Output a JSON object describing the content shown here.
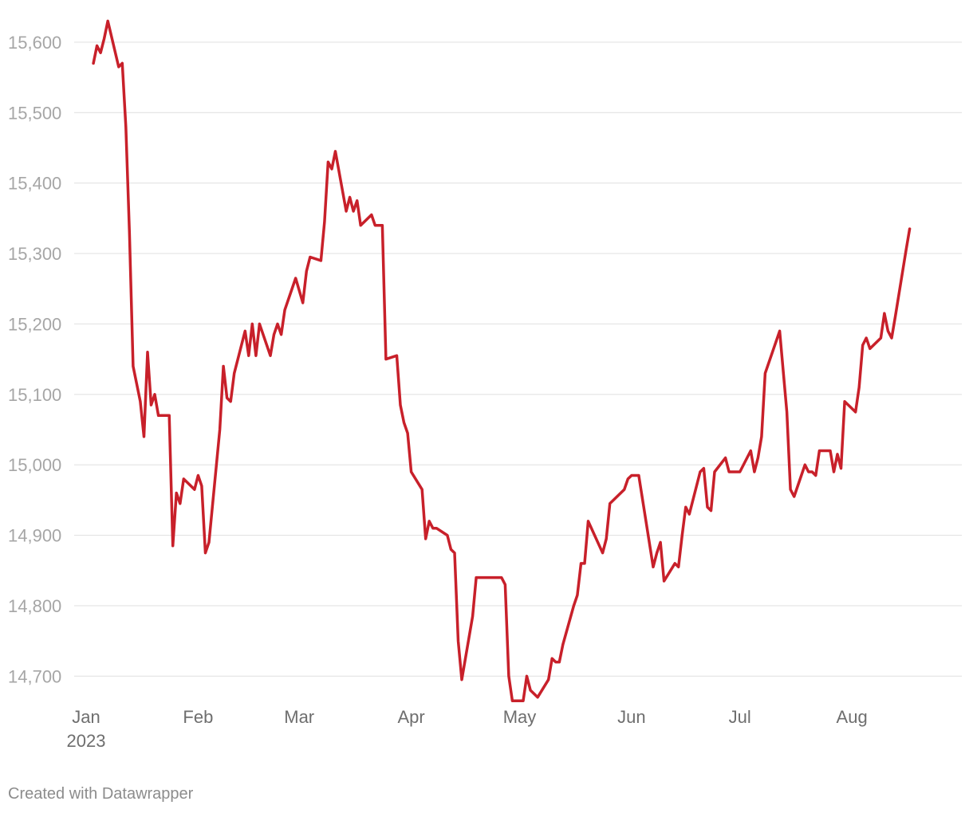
{
  "chart_data": {
    "type": "line",
    "title": "",
    "xlabel": "",
    "ylabel": "",
    "x_tick_labels": [
      "Jan",
      "Feb",
      "Mar",
      "Apr",
      "May",
      "Jun",
      "Jul",
      "Aug"
    ],
    "x_year_label": "2023",
    "y_ticks": [
      14700,
      14800,
      14900,
      15000,
      15100,
      15200,
      15300,
      15400,
      15500,
      15600
    ],
    "y_tick_labels": [
      "14,700",
      "14,800",
      "14,900",
      "15,000",
      "15,100",
      "15,200",
      "15,300",
      "15,400",
      "15,500",
      "15,600"
    ],
    "xlim": [
      "2023-01-01",
      "2023-08-31"
    ],
    "ylim": [
      14680,
      15635
    ],
    "grid": true,
    "legend": "none",
    "series": [
      {
        "color": "#c8202a",
        "points": [
          [
            "2023-01-03",
            15570
          ],
          [
            "2023-01-04",
            15595
          ],
          [
            "2023-01-05",
            15585
          ],
          [
            "2023-01-06",
            15605
          ],
          [
            "2023-01-07",
            15630
          ],
          [
            "2023-01-10",
            15565
          ],
          [
            "2023-01-11",
            15570
          ],
          [
            "2023-01-12",
            15480
          ],
          [
            "2023-01-13",
            15330
          ],
          [
            "2023-01-14",
            15140
          ],
          [
            "2023-01-16",
            15090
          ],
          [
            "2023-01-17",
            15040
          ],
          [
            "2023-01-18",
            15160
          ],
          [
            "2023-01-19",
            15085
          ],
          [
            "2023-01-20",
            15100
          ],
          [
            "2023-01-21",
            15070
          ],
          [
            "2023-01-24",
            15070
          ],
          [
            "2023-01-25",
            14885
          ],
          [
            "2023-01-26",
            14960
          ],
          [
            "2023-01-27",
            14945
          ],
          [
            "2023-01-28",
            14980
          ],
          [
            "2023-01-31",
            14965
          ],
          [
            "2023-02-01",
            14985
          ],
          [
            "2023-02-02",
            14970
          ],
          [
            "2023-02-03",
            14875
          ],
          [
            "2023-02-04",
            14890
          ],
          [
            "2023-02-07",
            15050
          ],
          [
            "2023-02-08",
            15140
          ],
          [
            "2023-02-09",
            15095
          ],
          [
            "2023-02-10",
            15090
          ],
          [
            "2023-02-11",
            15130
          ],
          [
            "2023-02-14",
            15190
          ],
          [
            "2023-02-15",
            15155
          ],
          [
            "2023-02-16",
            15200
          ],
          [
            "2023-02-17",
            15155
          ],
          [
            "2023-02-18",
            15200
          ],
          [
            "2023-02-21",
            15155
          ],
          [
            "2023-02-22",
            15185
          ],
          [
            "2023-02-23",
            15200
          ],
          [
            "2023-02-24",
            15185
          ],
          [
            "2023-02-25",
            15220
          ],
          [
            "2023-02-28",
            15265
          ],
          [
            "2023-03-02",
            15230
          ],
          [
            "2023-03-03",
            15275
          ],
          [
            "2023-03-04",
            15295
          ],
          [
            "2023-03-07",
            15290
          ],
          [
            "2023-03-08",
            15345
          ],
          [
            "2023-03-09",
            15430
          ],
          [
            "2023-03-10",
            15420
          ],
          [
            "2023-03-11",
            15445
          ],
          [
            "2023-03-14",
            15360
          ],
          [
            "2023-03-15",
            15380
          ],
          [
            "2023-03-16",
            15360
          ],
          [
            "2023-03-17",
            15375
          ],
          [
            "2023-03-18",
            15340
          ],
          [
            "2023-03-21",
            15355
          ],
          [
            "2023-03-22",
            15340
          ],
          [
            "2023-03-24",
            15340
          ],
          [
            "2023-03-25",
            15150
          ],
          [
            "2023-03-28",
            15155
          ],
          [
            "2023-03-29",
            15085
          ],
          [
            "2023-03-30",
            15060
          ],
          [
            "2023-03-31",
            15045
          ],
          [
            "2023-04-01",
            14990
          ],
          [
            "2023-04-04",
            14965
          ],
          [
            "2023-04-05",
            14895
          ],
          [
            "2023-04-06",
            14920
          ],
          [
            "2023-04-07",
            14910
          ],
          [
            "2023-04-08",
            14910
          ],
          [
            "2023-04-11",
            14900
          ],
          [
            "2023-04-12",
            14880
          ],
          [
            "2023-04-13",
            14875
          ],
          [
            "2023-04-14",
            14750
          ],
          [
            "2023-04-15",
            14695
          ],
          [
            "2023-04-18",
            14785
          ],
          [
            "2023-04-19",
            14840
          ],
          [
            "2023-04-26",
            14840
          ],
          [
            "2023-04-27",
            14830
          ],
          [
            "2023-04-28",
            14700
          ],
          [
            "2023-04-29",
            14665
          ],
          [
            "2023-05-02",
            14665
          ],
          [
            "2023-05-03",
            14700
          ],
          [
            "2023-05-04",
            14680
          ],
          [
            "2023-05-06",
            14670
          ],
          [
            "2023-05-09",
            14695
          ],
          [
            "2023-05-10",
            14725
          ],
          [
            "2023-05-11",
            14720
          ],
          [
            "2023-05-12",
            14720
          ],
          [
            "2023-05-13",
            14745
          ],
          [
            "2023-05-16",
            14800
          ],
          [
            "2023-05-17",
            14815
          ],
          [
            "2023-05-18",
            14860
          ],
          [
            "2023-05-19",
            14860
          ],
          [
            "2023-05-20",
            14920
          ],
          [
            "2023-05-24",
            14875
          ],
          [
            "2023-05-25",
            14895
          ],
          [
            "2023-05-26",
            14945
          ],
          [
            "2023-05-29",
            14960
          ],
          [
            "2023-05-30",
            14965
          ],
          [
            "2023-05-31",
            14980
          ],
          [
            "2023-06-01",
            14985
          ],
          [
            "2023-06-03",
            14985
          ],
          [
            "2023-06-07",
            14855
          ],
          [
            "2023-06-08",
            14875
          ],
          [
            "2023-06-09",
            14890
          ],
          [
            "2023-06-10",
            14835
          ],
          [
            "2023-06-13",
            14860
          ],
          [
            "2023-06-14",
            14855
          ],
          [
            "2023-06-15",
            14900
          ],
          [
            "2023-06-16",
            14940
          ],
          [
            "2023-06-17",
            14930
          ],
          [
            "2023-06-20",
            14990
          ],
          [
            "2023-06-21",
            14995
          ],
          [
            "2023-06-22",
            14940
          ],
          [
            "2023-06-23",
            14935
          ],
          [
            "2023-06-24",
            14990
          ],
          [
            "2023-06-27",
            15010
          ],
          [
            "2023-06-28",
            14990
          ],
          [
            "2023-07-01",
            14990
          ],
          [
            "2023-07-04",
            15020
          ],
          [
            "2023-07-05",
            14990
          ],
          [
            "2023-07-06",
            15010
          ],
          [
            "2023-07-07",
            15040
          ],
          [
            "2023-07-08",
            15130
          ],
          [
            "2023-07-12",
            15190
          ],
          [
            "2023-07-14",
            15075
          ],
          [
            "2023-07-15",
            14965
          ],
          [
            "2023-07-16",
            14955
          ],
          [
            "2023-07-19",
            15000
          ],
          [
            "2023-07-20",
            14990
          ],
          [
            "2023-07-21",
            14990
          ],
          [
            "2023-07-22",
            14985
          ],
          [
            "2023-07-23",
            15020
          ],
          [
            "2023-07-26",
            15020
          ],
          [
            "2023-07-27",
            14990
          ],
          [
            "2023-07-28",
            15015
          ],
          [
            "2023-07-29",
            14995
          ],
          [
            "2023-07-30",
            15090
          ],
          [
            "2023-08-02",
            15075
          ],
          [
            "2023-08-03",
            15110
          ],
          [
            "2023-08-04",
            15170
          ],
          [
            "2023-08-05",
            15180
          ],
          [
            "2023-08-06",
            15165
          ],
          [
            "2023-08-09",
            15180
          ],
          [
            "2023-08-10",
            15215
          ],
          [
            "2023-08-11",
            15190
          ],
          [
            "2023-08-12",
            15180
          ],
          [
            "2023-08-13",
            15210
          ],
          [
            "2023-08-16",
            15305
          ],
          [
            "2023-08-17",
            15335
          ]
        ]
      }
    ]
  },
  "footer": {
    "credit": "Created with Datawrapper"
  }
}
